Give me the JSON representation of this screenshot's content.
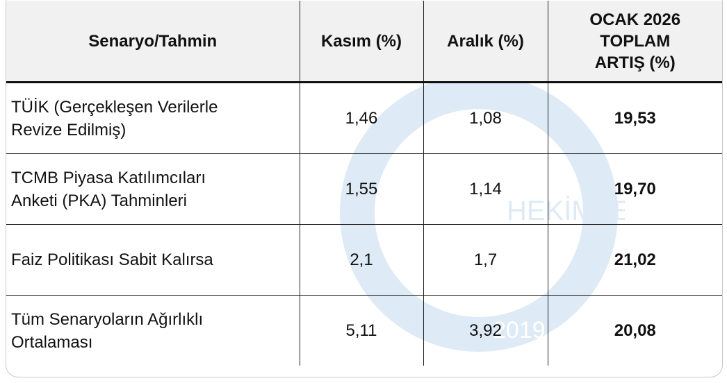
{
  "watermark": {
    "text": "HEKİMSEN",
    "year": "2019"
  },
  "table": {
    "headers": [
      "Senaryo/Tahmin",
      "Kasım (%)",
      "Aralık (%)",
      "OCAK 2026 TOPLAM ARTIŞ (%)"
    ],
    "header_last_lines": [
      "OCAK 2026",
      "TOPLAM",
      "ARTIŞ (%)"
    ],
    "rows": [
      {
        "name_lines": [
          "TÜİK (Gerçekleşen Verilerle",
          "Revize Edilmiş)"
        ],
        "kasim": "1,46",
        "aralik": "1,08",
        "total": "19,53"
      },
      {
        "name_lines": [
          "TCMB Piyasa Katılımcıları",
          "Anketi (PKA) Tahminleri"
        ],
        "kasim": "1,55",
        "aralik": "1,14",
        "total": "19,70"
      },
      {
        "name_lines": [
          "Faiz Politikası Sabit Kalırsa"
        ],
        "kasim": "2,1",
        "aralik": "1,7",
        "total": "21,02"
      },
      {
        "name_lines": [
          "Tüm Senaryoların Ağırlıklı",
          "Ortalaması"
        ],
        "kasim": "5,11",
        "aralik": "3,92",
        "total": "20,08"
      }
    ]
  }
}
